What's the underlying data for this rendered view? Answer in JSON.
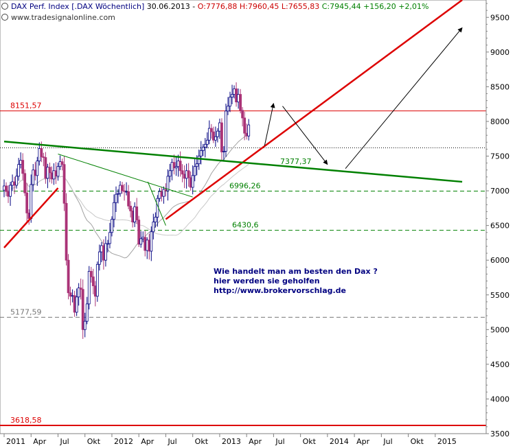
{
  "header": {
    "symbol": "DAX Perf. Index [.DAX  Wöchentlich]",
    "date": "30.06.2013",
    "ohl": "O:7776,88 H:7960,45 L:7655,83",
    "close": "C:7945,44 +156,20 +2,01%",
    "source": "www.tradesignalonline.com"
  },
  "annotation": {
    "line1": "Wie handelt man am besten  den Dax ?",
    "line2": "hier werden sie geholfen",
    "line3": "http://www.brokervorschlag.de"
  },
  "colors": {
    "red": "#dd0000",
    "green": "#008000",
    "axis": "#808080",
    "candle_up": "#000080",
    "candle_down": "#aa3377",
    "navy": "#000080"
  },
  "chart_data": {
    "type": "candlestick",
    "timeframe": "weekly",
    "ylim": [
      3500,
      9750
    ],
    "y_ticks": [
      3500,
      4000,
      4500,
      5000,
      5500,
      6000,
      6500,
      7000,
      7500,
      8000,
      8500,
      9000,
      9500
    ],
    "x_ticks": [
      "2011",
      "Apr",
      "Jul",
      "Okt",
      "2012",
      "Apr",
      "Jul",
      "Okt",
      "2013",
      "Apr",
      "Jul",
      "Okt",
      "2014",
      "Apr",
      "Jul",
      "Okt",
      "2015"
    ],
    "levels": [
      {
        "label": "8151,57",
        "value": 8151.57,
        "style": "solid",
        "color": "red"
      },
      {
        "label": "",
        "value": 7620,
        "style": "dotted",
        "color": "black"
      },
      {
        "label": "7377,37",
        "value": 7377.37,
        "style": "label",
        "color": "green"
      },
      {
        "label": "6996,26",
        "value": 6996.26,
        "style": "dashed",
        "color": "green"
      },
      {
        "label": "6430,6",
        "value": 6430.6,
        "style": "dashed",
        "color": "green"
      },
      {
        "label": "5177,59",
        "value": 5177.59,
        "style": "dashed",
        "color": "gray"
      },
      {
        "label": "3618,58",
        "value": 3618.58,
        "style": "solid",
        "color": "red"
      }
    ],
    "trendlines": [
      {
        "color": "red",
        "points": [
          [
            "2011-01",
            6180
          ],
          [
            "2011-07",
            7040
          ]
        ]
      },
      {
        "color": "red",
        "points": [
          [
            "2012-07",
            6590
          ],
          [
            "2015-04",
            9750
          ]
        ]
      },
      {
        "color": "green",
        "points": [
          [
            "2011-01",
            7710
          ],
          [
            "2015-04",
            7130
          ]
        ]
      },
      {
        "color": "green",
        "points": [
          [
            "2011-07",
            7530
          ],
          [
            "2012-10",
            6910
          ]
        ]
      },
      {
        "color": "green",
        "points": [
          [
            "2012-05",
            7130
          ],
          [
            "2012-07",
            6500
          ]
        ]
      }
    ],
    "projection_arrows": [
      {
        "points": [
          [
            "2013-06",
            7650
          ],
          [
            "2013-07",
            8260
          ]
        ]
      },
      {
        "points": [
          [
            "2013-08",
            8220
          ],
          [
            "2014-01",
            7380
          ]
        ]
      },
      {
        "points": [
          [
            "2014-03",
            7320
          ],
          [
            "2015-04",
            9350
          ]
        ]
      }
    ],
    "moving_averages": [
      {
        "color": "gray",
        "period": "long",
        "range": [
          "2011-01",
          "2013-07"
        ]
      },
      {
        "color": "lightgray",
        "period": "longer",
        "range": [
          "2011-01",
          "2013-07"
        ]
      }
    ],
    "weekly_closes": [
      7070,
      6990,
      6920,
      7080,
      7130,
      7080,
      7210,
      7380,
      7440,
      7250,
      6970,
      6680,
      6600,
      7090,
      7300,
      7220,
      7430,
      7610,
      7490,
      7480,
      7180,
      7340,
      7260,
      7170,
      7290,
      7210,
      7350,
      7420,
      7380,
      6820,
      6000,
      5530,
      5480,
      5490,
      5250,
      5470,
      5600,
      5580,
      5000,
      5120,
      5370,
      5840,
      5760,
      5630,
      5480,
      5940,
      6120,
      6210,
      6000,
      6240,
      6240,
      6400,
      6590,
      6830,
      6950,
      6960,
      7080,
      7000,
      6990,
      6990,
      6780,
      6710,
      6550,
      6770,
      6580,
      6230,
      6310,
      6330,
      6140,
      6290,
      6130,
      6410,
      6550,
      6620,
      6890,
      6990,
      6920,
      7020,
      7000,
      7210,
      7290,
      7410,
      7330,
      7350,
      7430,
      7290,
      7240,
      7180,
      7290,
      7190,
      7050,
      7220,
      7350,
      7390,
      7500,
      7580,
      7630,
      7670,
      7730,
      7900,
      7850,
      7730,
      7780,
      7860,
      7980,
      7560,
      7570,
      8150,
      8220,
      8350,
      8390,
      8470,
      8280,
      8390,
      8160,
      8050,
      7830,
      7790,
      7950
    ]
  }
}
